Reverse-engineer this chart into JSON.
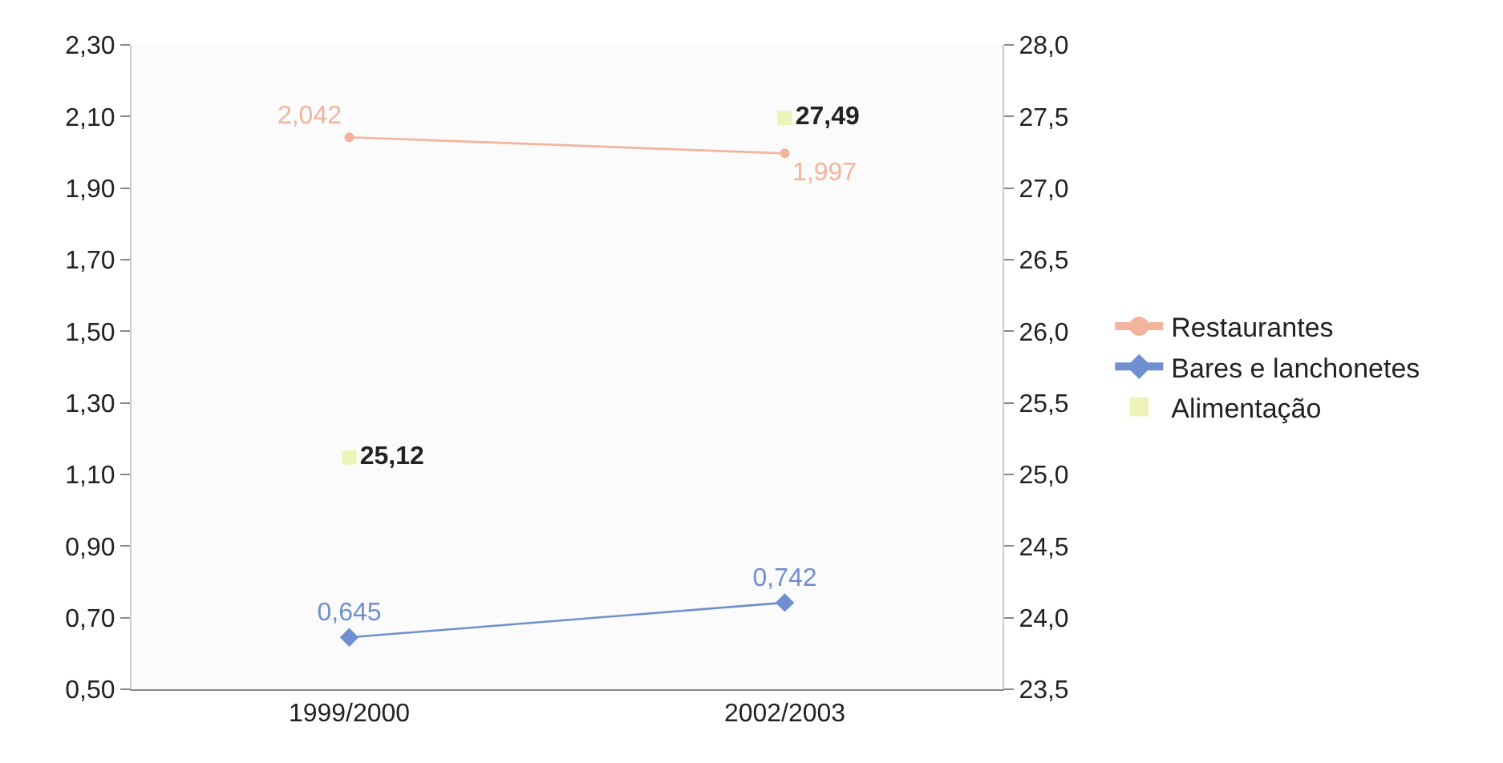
{
  "chart_data": {
    "type": "line",
    "categories": [
      "1999/2000",
      "2002/2003"
    ],
    "series": [
      {
        "name": "Restaurantes",
        "color": "#f2b49c",
        "marker": "circle",
        "values": [
          2.042,
          1.997
        ],
        "value_labels": [
          "2,042",
          "1,997"
        ]
      },
      {
        "name": "Bares e lanchonetes",
        "color": "#6f8fd0",
        "marker": "diamond",
        "values": [
          0.645,
          0.742
        ],
        "value_labels": [
          "0,645",
          "0,742"
        ]
      },
      {
        "name": "Alimentação",
        "type": "scatter",
        "axis": "y2",
        "color": "#eef3b8",
        "marker": "square",
        "values": [
          25.12,
          27.49
        ],
        "value_labels": [
          "25,12",
          "27,49"
        ]
      }
    ],
    "ylim": [
      0.5,
      2.3
    ],
    "yticks": [
      {
        "value": 0.5,
        "label": "0,50"
      },
      {
        "value": 0.7,
        "label": "0,70"
      },
      {
        "value": 0.9,
        "label": "0,90"
      },
      {
        "value": 1.1,
        "label": "1,10"
      },
      {
        "value": 1.3,
        "label": "1,30"
      },
      {
        "value": 1.5,
        "label": "1,50"
      },
      {
        "value": 1.7,
        "label": "1,70"
      },
      {
        "value": 1.9,
        "label": "1,90"
      },
      {
        "value": 2.1,
        "label": "2,10"
      },
      {
        "value": 2.3,
        "label": "2,30"
      }
    ],
    "y2lim": [
      23.5,
      28.0
    ],
    "y2ticks": [
      {
        "value": 23.5,
        "label": "23,5"
      },
      {
        "value": 24.0,
        "label": "24,0"
      },
      {
        "value": 24.5,
        "label": "24,5"
      },
      {
        "value": 25.0,
        "label": "25,0"
      },
      {
        "value": 25.5,
        "label": "25,5"
      },
      {
        "value": 26.0,
        "label": "26,0"
      },
      {
        "value": 26.5,
        "label": "26,5"
      },
      {
        "value": 27.0,
        "label": "27,0"
      },
      {
        "value": 27.5,
        "label": "27,5"
      },
      {
        "value": 28.0,
        "label": "28,0"
      }
    ],
    "legend": "right"
  }
}
